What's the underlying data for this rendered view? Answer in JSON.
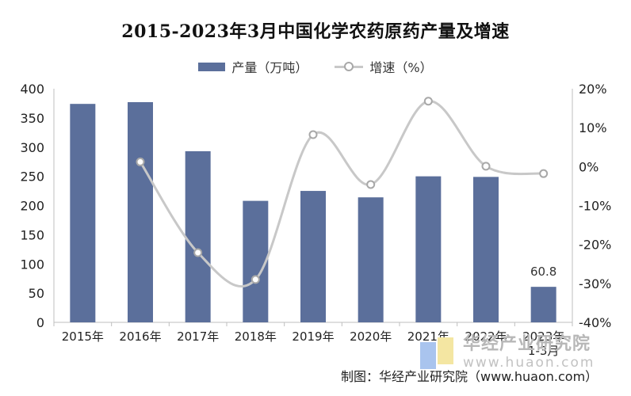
{
  "chart_data": {
    "type": "bar",
    "title": "2015-2023年3月中国化学农药原药产量及增速",
    "categories": [
      "2015年",
      "2016年",
      "2017年",
      "2018年",
      "2019年",
      "2020年",
      "2021年",
      "2022年",
      "2023年 1-3月"
    ],
    "category_lines": [
      [
        "2015年"
      ],
      [
        "2016年"
      ],
      [
        "2017年"
      ],
      [
        "2018年"
      ],
      [
        "2019年"
      ],
      [
        "2020年"
      ],
      [
        "2021年"
      ],
      [
        "2022年"
      ],
      [
        "2023年",
        "1-3月"
      ]
    ],
    "series": [
      {
        "name": "产量（万吨）",
        "type": "bar",
        "axis": "left",
        "color": "#5b6f9b",
        "values": [
          374,
          377,
          293,
          208,
          225,
          214,
          250,
          249,
          60.8
        ]
      },
      {
        "name": "增速（%）",
        "type": "line",
        "axis": "right",
        "color": "#c8c8c8",
        "marker_color": "#a8a8a8",
        "values": [
          null,
          1.2,
          -22.1,
          -29.0,
          8.2,
          -4.6,
          16.8,
          0.1,
          -1.8
        ]
      }
    ],
    "data_labels": [
      {
        "index": 8,
        "text": "60.8"
      }
    ],
    "y_left": {
      "min": 0,
      "max": 400,
      "step": 50,
      "ticks": [
        "0",
        "50",
        "100",
        "150",
        "200",
        "250",
        "300",
        "350",
        "400"
      ]
    },
    "y_right": {
      "min": -40,
      "max": 20,
      "step": 10,
      "ticks": [
        "-40%",
        "-30%",
        "-20%",
        "-10%",
        "0%",
        "10%",
        "20%"
      ]
    },
    "legend_position": "top-center",
    "grid": false
  },
  "watermark": {
    "cn": "华经产业研究院",
    "en": "www.huaon.com"
  },
  "source": "制图：华经产业研究院（www.huaon.com）"
}
